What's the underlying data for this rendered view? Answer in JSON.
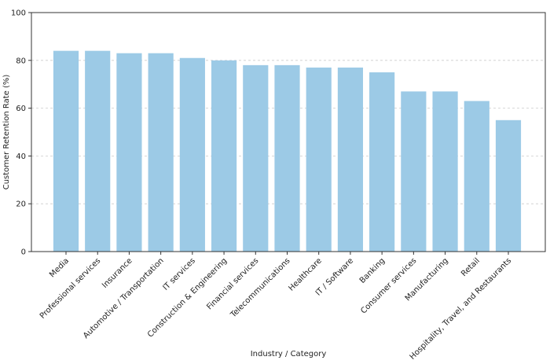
{
  "chart_data": {
    "type": "bar",
    "title": "",
    "xlabel": "Industry / Category",
    "ylabel": "Customer Retention Rate (%)",
    "ylim": [
      0,
      100
    ],
    "yticks": [
      0,
      20,
      40,
      60,
      80,
      100
    ],
    "grid": true,
    "bar_color": "#9ccae6",
    "categories": [
      "Media",
      "Professional services",
      "Insurance",
      "Automotive / Transportation",
      "IT services",
      "Construction & Engineering",
      "Financial services",
      "Telecommunications",
      "Healthcare",
      "IT / Software",
      "Banking",
      "Consumer services",
      "Manufacturing",
      "Retail",
      "Hospitality, Travel, and Restaurants"
    ],
    "values": [
      84,
      84,
      83,
      83,
      81,
      80,
      78,
      78,
      77,
      77,
      75,
      67,
      67,
      63,
      55
    ]
  }
}
